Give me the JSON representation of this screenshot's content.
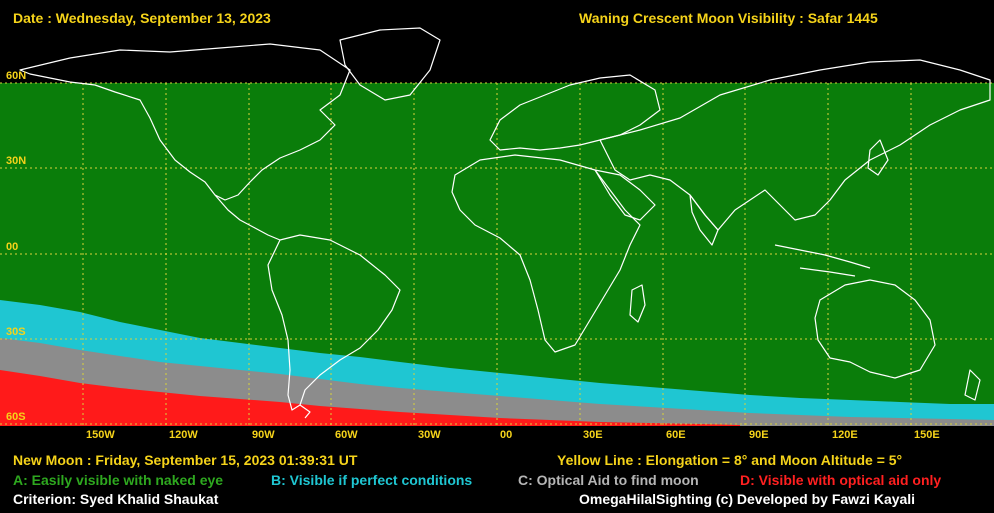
{
  "header": {
    "date": "Date : Wednesday, September 13, 2023",
    "title": "Waning Crescent Moon Visibility : Safar 1445"
  },
  "lat_labels": [
    "60N",
    "30N",
    "00",
    "30S",
    "60S"
  ],
  "lon_labels": [
    "150W",
    "120W",
    "90W",
    "60W",
    "30W",
    "00",
    "30E",
    "60E",
    "90E",
    "120E",
    "150E"
  ],
  "footer": {
    "new_moon": "New Moon : Friday, September 15, 2023  01:39:31  UT",
    "yellow_line": "Yellow Line : Elongation = 8° and Moon Altitude = 5°",
    "legend_a": "A: Easily visible with naked eye",
    "legend_b": "B: Visible if perfect conditions",
    "legend_c": "C: Optical Aid to find moon",
    "legend_d": "D: Visible with optical aid only",
    "criterion": "Criterion: Syed Khalid Shaukat",
    "credit": "OmegaHilalSighting  (c)  Developed by Fawzi Kayali"
  },
  "colors": {
    "zone_a": "#0a7d0a",
    "zone_b": "#1fc6d2",
    "zone_c": "#8c8c8c",
    "zone_d": "#ff1a1a",
    "grid": "#d8d23a",
    "coast": "#ffffff"
  }
}
